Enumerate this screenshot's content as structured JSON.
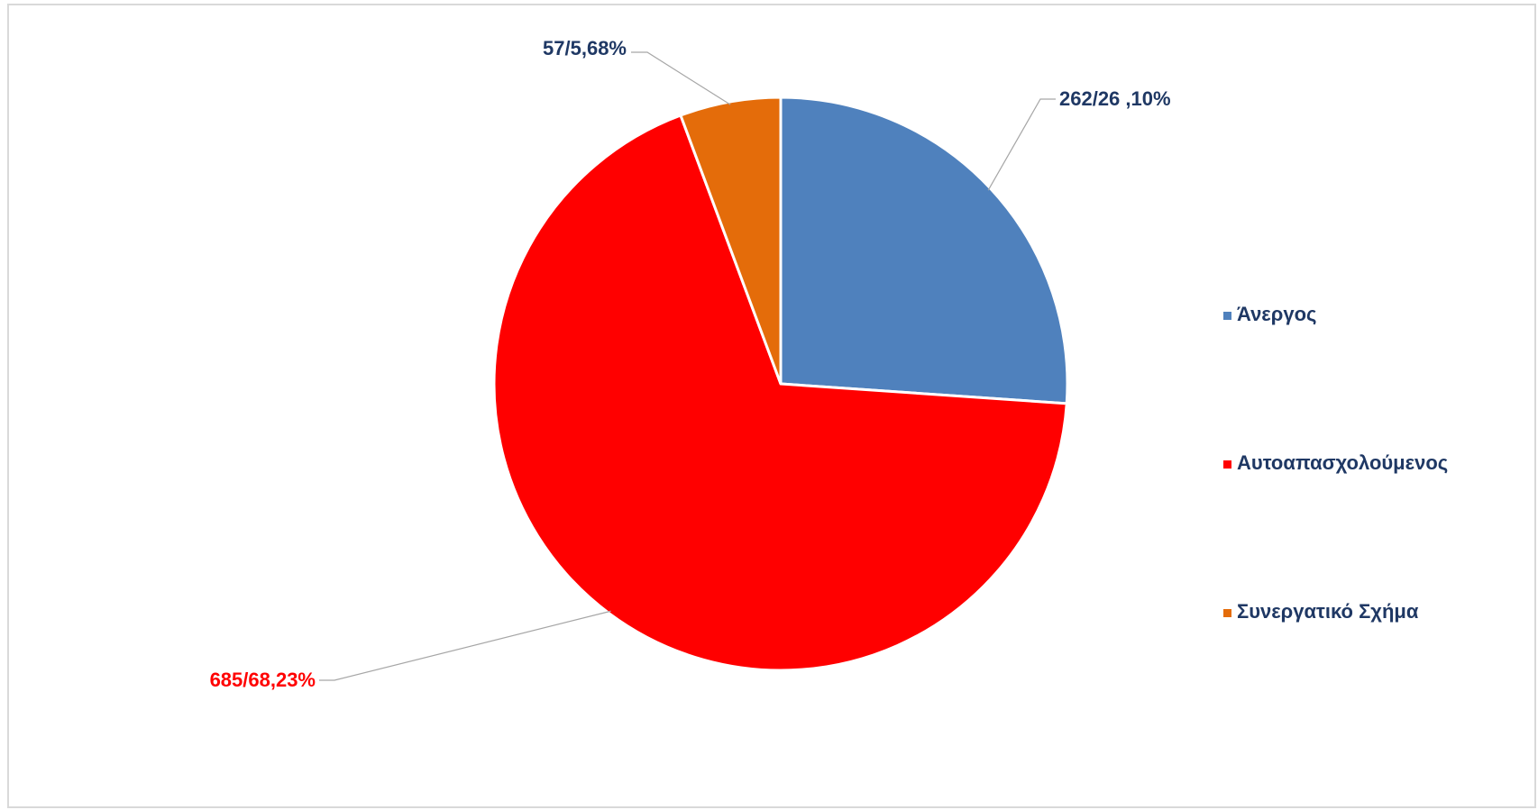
{
  "chart_data": {
    "type": "pie",
    "slices": [
      {
        "name": "Άνεργος",
        "value": 262,
        "percent_label": "262/26 ,10%",
        "color": "#4f81bd",
        "label_color": "#1f3864"
      },
      {
        "name": "Αυτοαπασχολούμενος",
        "value": 685,
        "percent_label": "685/68,23%",
        "color": "#ff0000",
        "label_color": "#ff0000"
      },
      {
        "name": "Συνεργατικό Σχήμα",
        "value": 57,
        "percent_label": "57/5,68%",
        "color": "#e46c0a",
        "label_color": "#1f3864"
      }
    ],
    "legend_position": "right",
    "start_angle": "12 o'clock",
    "direction": "clockwise"
  }
}
